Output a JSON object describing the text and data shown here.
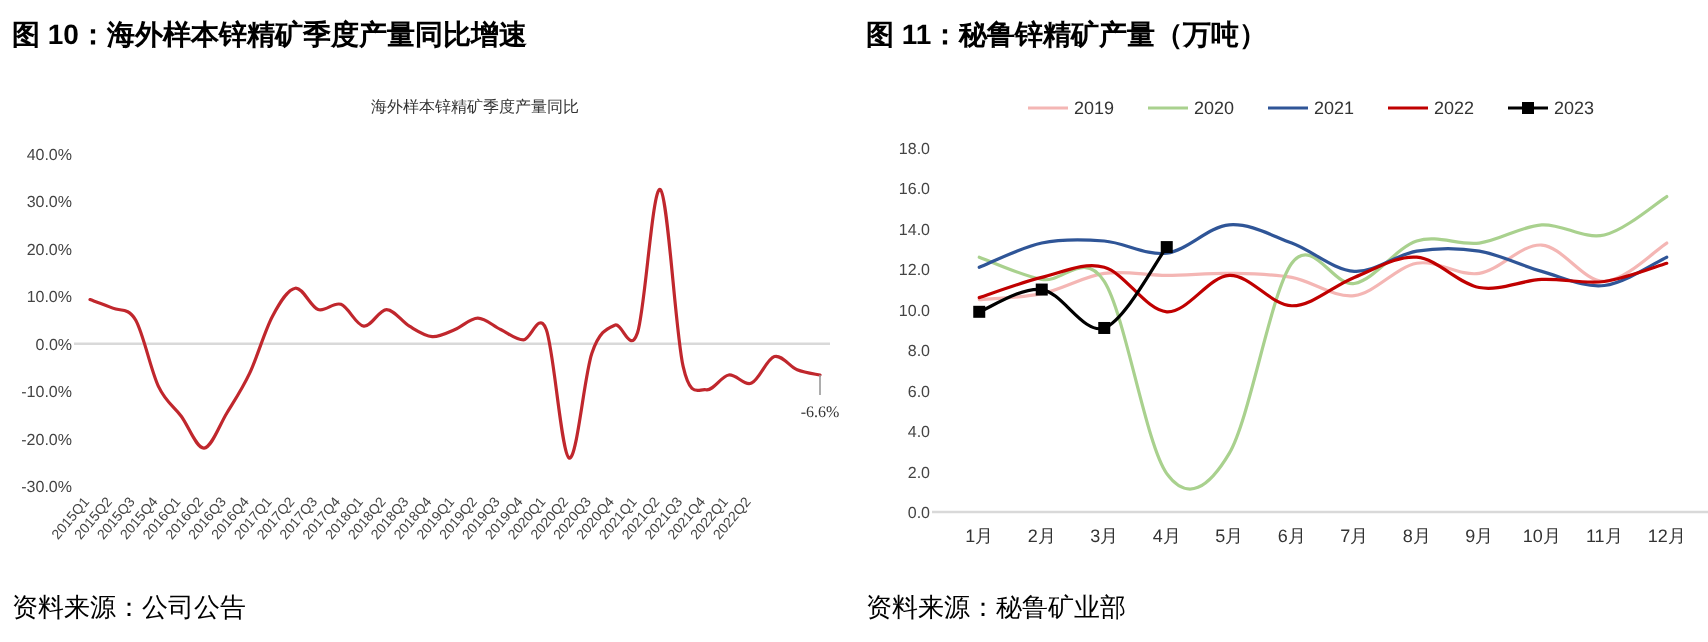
{
  "chart_data": [
    {
      "type": "line",
      "title": "图 10：海外样本锌精矿季度产量同比增速",
      "subtitle": "海外样本锌精矿季度产量同比",
      "categories": [
        "2015Q1",
        "2015Q2",
        "2015Q3",
        "2015Q4",
        "2016Q1",
        "2016Q2",
        "2016Q3",
        "2016Q4",
        "2017Q1",
        "2017Q2",
        "2017Q3",
        "2017Q4",
        "2018Q1",
        "2018Q2",
        "2018Q3",
        "2018Q4",
        "2019Q1",
        "2019Q2",
        "2019Q3",
        "2019Q4",
        "2020Q1",
        "2020Q2",
        "2020Q3",
        "2020Q4",
        "2021Q1",
        "2021Q2",
        "2021Q3",
        "2021Q4",
        "2022Q1",
        "2022Q2",
        null,
        null,
        null
      ],
      "series": [
        {
          "color": "#c0272d",
          "values": [
            9.3,
            7.5,
            5.0,
            -9.0,
            -15.3,
            -22.0,
            -14.6,
            -6.2,
            5.8,
            11.7,
            7.2,
            8.3,
            3.7,
            7.2,
            3.7,
            1.5,
            3.0,
            5.4,
            3.0,
            0.8,
            3.0,
            -24.1,
            -2.0,
            3.9,
            2.3,
            32.5,
            -4.8,
            -9.7,
            -6.6,
            -8.3,
            -2.7,
            -5.5,
            -6.6
          ],
          "value_labels": [
            null,
            null,
            null,
            null,
            null,
            null,
            null,
            null,
            null,
            null,
            null,
            null,
            null,
            null,
            null,
            null,
            null,
            null,
            null,
            null,
            null,
            null,
            null,
            null,
            null,
            null,
            null,
            null,
            null,
            null,
            null,
            null,
            "-6.6%"
          ]
        }
      ],
      "ylim": [
        -30,
        40
      ],
      "yticks": [
        {
          "value": -30,
          "label": "-30.0%"
        },
        {
          "value": -20,
          "label": "-20.0%"
        },
        {
          "value": -10,
          "label": "-10.0%"
        },
        {
          "value": 0,
          "label": "0.0%"
        },
        {
          "value": 10,
          "label": "10.0%"
        },
        {
          "value": 20,
          "label": "20.0%"
        },
        {
          "value": 30,
          "label": "30.0%"
        },
        {
          "value": 40,
          "label": "40.0%"
        }
      ],
      "legend": false,
      "annotations": [
        "资料来源：公司公告"
      ]
    },
    {
      "type": "line",
      "title": "图 11：秘鲁锌精矿产量（万吨）",
      "categories": [
        "1月",
        "2月",
        "3月",
        "4月",
        "5月",
        "6月",
        "7月",
        "8月",
        "9月",
        "10月",
        "11月",
        "12月"
      ],
      "series": [
        {
          "name": "2019",
          "color": "#f4b6b4",
          "values": [
            10.5,
            10.8,
            11.8,
            11.7,
            11.8,
            11.6,
            10.7,
            12.3,
            11.8,
            13.2,
            11.4,
            13.3
          ]
        },
        {
          "name": "2020",
          "color": "#a9d18e",
          "values": [
            12.6,
            11.5,
            11.4,
            1.9,
            2.9,
            12.3,
            11.3,
            13.4,
            13.3,
            14.2,
            13.7,
            15.6
          ]
        },
        {
          "name": "2021",
          "color": "#2f5597",
          "values": [
            12.1,
            13.3,
            13.4,
            12.8,
            14.2,
            13.3,
            11.9,
            12.9,
            12.9,
            11.9,
            11.2,
            12.6
          ]
        },
        {
          "name": "2022",
          "color": "#c00000",
          "values": [
            10.6,
            11.6,
            12.1,
            9.9,
            11.7,
            10.2,
            11.6,
            12.6,
            11.1,
            11.5,
            11.4,
            12.3
          ]
        },
        {
          "name": "2023",
          "color": "#000000",
          "marker": "square",
          "values": [
            9.9,
            11.0,
            9.1,
            13.1,
            null,
            null,
            null,
            null,
            null,
            null,
            null,
            null
          ]
        }
      ],
      "ylim": [
        0,
        18
      ],
      "yticks": [
        {
          "value": 0,
          "label": "0.0"
        },
        {
          "value": 2,
          "label": "2.0"
        },
        {
          "value": 4,
          "label": "4.0"
        },
        {
          "value": 6,
          "label": "6.0"
        },
        {
          "value": 8,
          "label": "8.0"
        },
        {
          "value": 10,
          "label": "10.0"
        },
        {
          "value": 12,
          "label": "12.0"
        },
        {
          "value": 14,
          "label": "14.0"
        },
        {
          "value": 16,
          "label": "16.0"
        },
        {
          "value": 18,
          "label": "18.0"
        }
      ],
      "legend": "top",
      "annotations": [
        "资料来源：秘鲁矿业部"
      ]
    }
  ]
}
